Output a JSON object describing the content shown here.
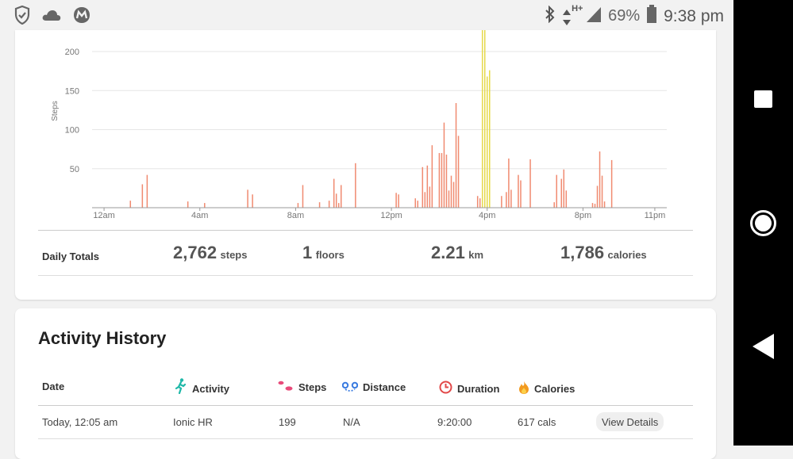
{
  "status": {
    "battery": "69%",
    "time": "9:38 pm",
    "network": "H+",
    "icons_left": [
      "shield-check-icon",
      "cloud-icon",
      "malwarebytes-icon"
    ],
    "icons_right": [
      "bluetooth-icon",
      "data-arrows-icon",
      "signal-icon",
      "battery-icon"
    ]
  },
  "chart_data": {
    "type": "bar",
    "ylabel": "Steps",
    "yticks": [
      50,
      100,
      150,
      200
    ],
    "ylim": [
      0,
      230
    ],
    "xticks": [
      "12am",
      "4am",
      "8am",
      "12pm",
      "4pm",
      "8pm",
      "11pm"
    ],
    "xtick_hours": [
      0,
      4,
      8,
      12,
      16,
      20,
      23
    ],
    "xlim": [
      -0.5,
      23.5
    ],
    "grid": true,
    "colors": {
      "normal": "#f08a70",
      "active": "#e6d94a",
      "grid": "#e6e6e6",
      "axis": "#999999"
    },
    "bars": [
      {
        "h": 1.1,
        "v": 9
      },
      {
        "h": 1.6,
        "v": 30
      },
      {
        "h": 1.8,
        "v": 42
      },
      {
        "h": 3.5,
        "v": 8
      },
      {
        "h": 4.2,
        "v": 6
      },
      {
        "h": 6.0,
        "v": 23
      },
      {
        "h": 6.2,
        "v": 17
      },
      {
        "h": 8.1,
        "v": 6
      },
      {
        "h": 8.3,
        "v": 29
      },
      {
        "h": 9.0,
        "v": 7
      },
      {
        "h": 9.4,
        "v": 9
      },
      {
        "h": 9.6,
        "v": 37
      },
      {
        "h": 9.7,
        "v": 18
      },
      {
        "h": 9.8,
        "v": 6
      },
      {
        "h": 9.9,
        "v": 29
      },
      {
        "h": 10.5,
        "v": 57
      },
      {
        "h": 12.2,
        "v": 19
      },
      {
        "h": 12.3,
        "v": 17
      },
      {
        "h": 13.0,
        "v": 12
      },
      {
        "h": 13.1,
        "v": 9
      },
      {
        "h": 13.3,
        "v": 52
      },
      {
        "h": 13.4,
        "v": 20
      },
      {
        "h": 13.5,
        "v": 54
      },
      {
        "h": 13.6,
        "v": 27
      },
      {
        "h": 13.7,
        "v": 80
      },
      {
        "h": 14.0,
        "v": 70
      },
      {
        "h": 14.1,
        "v": 70
      },
      {
        "h": 14.2,
        "v": 109
      },
      {
        "h": 14.3,
        "v": 68
      },
      {
        "h": 14.4,
        "v": 22
      },
      {
        "h": 14.5,
        "v": 41
      },
      {
        "h": 14.6,
        "v": 33
      },
      {
        "h": 14.7,
        "v": 134
      },
      {
        "h": 14.8,
        "v": 92
      },
      {
        "h": 15.6,
        "v": 15
      },
      {
        "h": 15.7,
        "v": 12
      },
      {
        "h": 15.8,
        "v": 228,
        "active": true
      },
      {
        "h": 15.9,
        "v": 228,
        "active": true
      },
      {
        "h": 16.0,
        "v": 168,
        "active": true
      },
      {
        "h": 16.1,
        "v": 176,
        "active": true
      },
      {
        "h": 16.6,
        "v": 15
      },
      {
        "h": 16.8,
        "v": 20
      },
      {
        "h": 16.9,
        "v": 63
      },
      {
        "h": 17.0,
        "v": 23
      },
      {
        "h": 17.3,
        "v": 42
      },
      {
        "h": 17.4,
        "v": 35
      },
      {
        "h": 17.8,
        "v": 62
      },
      {
        "h": 18.8,
        "v": 7
      },
      {
        "h": 18.9,
        "v": 42
      },
      {
        "h": 19.1,
        "v": 37
      },
      {
        "h": 19.2,
        "v": 49
      },
      {
        "h": 19.3,
        "v": 22
      },
      {
        "h": 20.4,
        "v": 6
      },
      {
        "h": 20.5,
        "v": 5
      },
      {
        "h": 20.6,
        "v": 28
      },
      {
        "h": 20.7,
        "v": 72
      },
      {
        "h": 20.8,
        "v": 41
      },
      {
        "h": 20.9,
        "v": 8
      },
      {
        "h": 21.2,
        "v": 61
      }
    ]
  },
  "totals": {
    "label": "Daily Totals",
    "steps": {
      "value": "2,762",
      "unit": "steps"
    },
    "floors": {
      "value": "1",
      "unit": "floors"
    },
    "distance": {
      "value": "2.21",
      "unit": "km"
    },
    "calories": {
      "value": "1,786",
      "unit": "calories"
    }
  },
  "history": {
    "title": "Activity History",
    "columns": {
      "date": "Date",
      "activity": "Activity",
      "steps": "Steps",
      "distance": "Distance",
      "duration": "Duration",
      "calories": "Calories"
    },
    "column_colors": {
      "activity": "#1fb8a8",
      "steps": "#e84a7a",
      "distance": "#3a7be0",
      "duration": "#e24848",
      "calories": "#f29a1f"
    },
    "rows": [
      {
        "date": "Today, 12:05 am",
        "activity": "Ionic HR",
        "steps": "199",
        "distance": "N/A",
        "duration": "9:20:00",
        "calories": "617 cals",
        "action": "View Details"
      }
    ]
  }
}
